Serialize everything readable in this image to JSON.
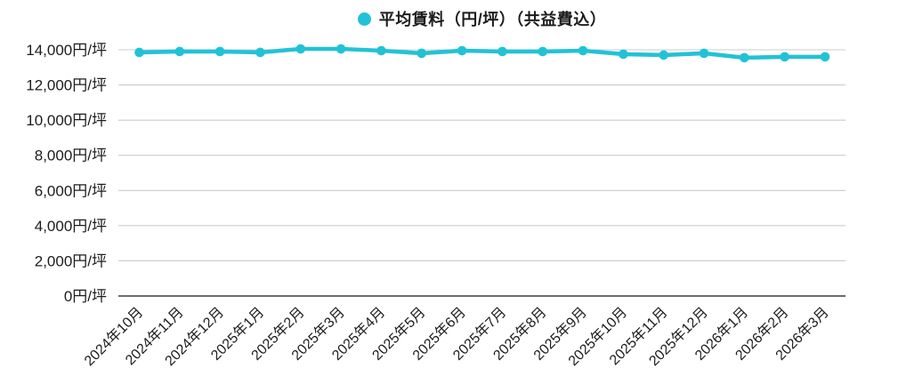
{
  "legend": {
    "marker_color": "#22c2d6"
  },
  "chart_data": {
    "type": "line",
    "title": "",
    "x": [
      "2024年10月",
      "2024年11月",
      "2024年12月",
      "2025年1月",
      "2025年2月",
      "2025年3月",
      "2025年4月",
      "2025年5月",
      "2025年6月",
      "2025年7月",
      "2025年8月",
      "2025年9月",
      "2025年10月",
      "2025年11月",
      "2025年12月",
      "2026年1月",
      "2026年2月",
      "2026年3月"
    ],
    "series": [
      {
        "name": "平均賃料（円/坪）（共益費込）",
        "color": "#22c2d6",
        "values": [
          13850,
          13900,
          13900,
          13850,
          14050,
          14050,
          13950,
          13800,
          13950,
          13900,
          13900,
          13950,
          13750,
          13700,
          13800,
          13550,
          13600,
          13600
        ]
      }
    ],
    "yticks": [
      {
        "value": 0,
        "label": "0円/坪"
      },
      {
        "value": 2000,
        "label": "2,000円/坪"
      },
      {
        "value": 4000,
        "label": "4,000円/坪"
      },
      {
        "value": 6000,
        "label": "6,000円/坪"
      },
      {
        "value": 8000,
        "label": "8,000円/坪"
      },
      {
        "value": 10000,
        "label": "10,000円/坪"
      },
      {
        "value": 12000,
        "label": "12,000円/坪"
      },
      {
        "value": 14000,
        "label": "14,000円/坪"
      }
    ],
    "ylim": [
      0,
      14000
    ],
    "xlabel": "",
    "ylabel": "",
    "grid": "horizontal-only",
    "legend_position": "top-center",
    "x_tick_rotation_deg": -45
  },
  "colors": {
    "line": "#22c2d6",
    "grid": "#cccccc",
    "axis": "#3d3d3d",
    "text": "#1c1c1c",
    "background": "#ffffff"
  }
}
